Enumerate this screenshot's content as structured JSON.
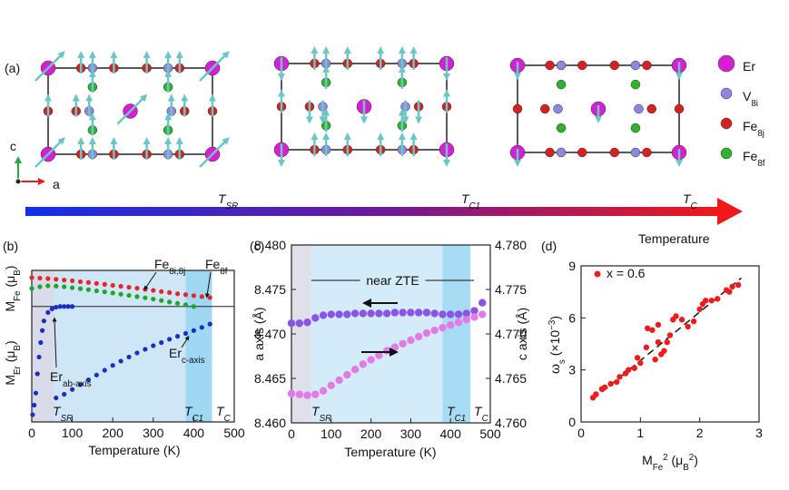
{
  "panel_a": {
    "label": "(a)",
    "legend": [
      {
        "name": [
          "Er"
        ],
        "color": "#d61fd2"
      },
      {
        "name": [
          "V",
          {
            "sub": "8i"
          }
        ],
        "color": "#8c88e2"
      },
      {
        "name": [
          "Fe",
          {
            "sub": "8j"
          }
        ],
        "color": "#d42222"
      },
      {
        "name": [
          "Fe",
          {
            "sub": "8f"
          }
        ],
        "color": "#2db42d"
      }
    ],
    "axis_labels": [
      "c",
      "a"
    ],
    "temperature_axis": {
      "label": "Temperature",
      "markers": [
        [
          "T",
          {
            "sub": "SR"
          }
        ],
        [
          "T",
          {
            "sub": "C1"
          }
        ],
        [
          "T",
          {
            "sub": "C"
          }
        ]
      ]
    }
  },
  "chart_data": [
    {
      "type": "scatter",
      "label": "(b)",
      "xlabel": "Temperature (K)",
      "ylabel_upper": [
        "M",
        {
          "sub": "Fe"
        },
        " (μ",
        {
          "sub": "B"
        },
        ")"
      ],
      "ylabel_lower": [
        "M",
        {
          "sub": "Er"
        },
        " (μ",
        {
          "sub": "B"
        },
        ")"
      ],
      "xlim": [
        0,
        500
      ],
      "xticks": [
        0,
        100,
        200,
        300,
        400,
        500
      ],
      "ylim": [
        -4.8,
        1.5
      ],
      "zero_line": true,
      "shaded_regions": [
        {
          "from": 0,
          "to": 55,
          "color": "#d9dbe8"
        },
        {
          "from": 55,
          "to": 380,
          "color": "#cfe6f7"
        },
        {
          "from": 380,
          "to": 445,
          "color": "#9ed8f2"
        }
      ],
      "annotations": [
        [
          "T",
          {
            "sub": "SR"
          }
        ],
        [
          "T",
          {
            "sub": "C1"
          }
        ],
        [
          "T",
          {
            "sub": "C"
          }
        ]
      ],
      "series": [
        {
          "name": [
            "Fe",
            {
              "sub": "8i,8j"
            }
          ],
          "color": "#e8262a",
          "x": [
            0,
            20,
            40,
            60,
            80,
            100,
            120,
            140,
            160,
            180,
            200,
            220,
            240,
            260,
            280,
            300,
            320,
            340,
            360,
            380,
            400,
            420,
            440
          ],
          "values": [
            1.2,
            1.18,
            1.16,
            1.13,
            1.1,
            1.07,
            1.03,
            1.0,
            0.96,
            0.92,
            0.88,
            0.84,
            0.8,
            0.76,
            0.71,
            0.67,
            0.62,
            0.58,
            0.53,
            0.49,
            0.45,
            0.41,
            0.37
          ]
        },
        {
          "name": [
            "Fe",
            {
              "sub": "8f"
            }
          ],
          "color": "#22a32a",
          "x": [
            0,
            20,
            40,
            60,
            80,
            100,
            120,
            140,
            160,
            180,
            200,
            220,
            240,
            260,
            280,
            300,
            320,
            340,
            360,
            380,
            400
          ],
          "values": [
            0.75,
            0.82,
            0.86,
            0.85,
            0.82,
            0.78,
            0.74,
            0.7,
            0.65,
            0.61,
            0.56,
            0.51,
            0.46,
            0.41,
            0.36,
            0.31,
            0.25,
            0.19,
            0.13,
            0.07,
            0.0
          ]
        },
        {
          "name": [
            "Er",
            {
              "sub": "ab-axis"
            }
          ],
          "color": "#1a2fc0",
          "x": [
            2,
            6,
            10,
            14,
            18,
            22,
            26,
            30,
            40,
            50,
            60,
            70,
            80,
            90,
            100
          ],
          "values": [
            -4.5,
            -4.1,
            -3.6,
            -2.8,
            -2.1,
            -1.5,
            -1.0,
            -0.6,
            -0.25,
            -0.1,
            -0.03,
            0,
            0,
            0,
            0
          ]
        },
        {
          "name": [
            "Er",
            {
              "sub": "c-axis"
            }
          ],
          "color": "#1a2fc0",
          "x": [
            60,
            80,
            100,
            120,
            140,
            160,
            180,
            200,
            220,
            240,
            260,
            280,
            300,
            320,
            340,
            360,
            380,
            400,
            420,
            440
          ],
          "values": [
            -3.8,
            -3.65,
            -3.45,
            -3.25,
            -3.05,
            -2.85,
            -2.65,
            -2.45,
            -2.27,
            -2.1,
            -1.93,
            -1.78,
            -1.63,
            -1.5,
            -1.36,
            -1.24,
            -1.12,
            -1.0,
            -0.87,
            -0.73
          ]
        }
      ]
    },
    {
      "type": "scatter",
      "label": "(c)",
      "xlabel": "Temperature (K)",
      "ylabel": "a axis (Å)",
      "y2label": "c axis (Å)",
      "xlim": [
        0,
        500
      ],
      "xticks": [
        0,
        100,
        200,
        300,
        400,
        500
      ],
      "ylim": [
        8.46,
        8.48
      ],
      "yticks": [
        {
          "value": 8.46,
          "label": "8.460"
        },
        {
          "value": 8.465,
          "label": "8.465"
        },
        {
          "value": 8.47,
          "label": "8.470"
        },
        {
          "value": 8.475,
          "label": "8.475"
        },
        {
          "value": 8.48,
          "label": "8.480"
        }
      ],
      "y2lim": [
        4.76,
        4.78
      ],
      "y2ticks": [
        {
          "value": 4.76,
          "label": "4.760"
        },
        {
          "value": 4.765,
          "label": "4.765"
        },
        {
          "value": 4.77,
          "label": "4.770"
        },
        {
          "value": 4.775,
          "label": "4.775"
        },
        {
          "value": 4.78,
          "label": "4.780"
        }
      ],
      "shaded_regions": [
        {
          "from": 0,
          "to": 50,
          "color": "#e0e0ea"
        },
        {
          "from": 50,
          "to": 380,
          "color": "#d4ebf9"
        },
        {
          "from": 380,
          "to": 450,
          "color": "#a8dcf4"
        }
      ],
      "span_label": "near ZTE",
      "annotations": [
        [
          "T",
          {
            "sub": "SR"
          }
        ],
        [
          "T",
          {
            "sub": "C1"
          }
        ],
        [
          "T",
          {
            "sub": "C"
          }
        ]
      ],
      "series": [
        {
          "color": "#8a55e6",
          "x": [
            0,
            20,
            40,
            60,
            80,
            100,
            120,
            140,
            160,
            180,
            200,
            220,
            240,
            260,
            280,
            300,
            320,
            340,
            360,
            380,
            400,
            420,
            440,
            460,
            480
          ],
          "values": [
            8.4712,
            8.4712,
            8.4713,
            8.4718,
            8.4721,
            8.4722,
            8.4722,
            8.4722,
            8.4723,
            8.4723,
            8.4723,
            8.4723,
            8.4723,
            8.4724,
            8.4724,
            8.4724,
            8.4724,
            8.4724,
            8.4723,
            8.4722,
            8.4722,
            8.4722,
            8.4723,
            8.4726,
            8.4735
          ]
        },
        {
          "color": "#e27be6",
          "axis": "y2",
          "x": [
            0,
            20,
            40,
            60,
            80,
            100,
            120,
            140,
            160,
            180,
            200,
            220,
            240,
            260,
            280,
            300,
            320,
            340,
            360,
            380,
            400,
            420,
            440,
            460,
            480
          ],
          "values": [
            4.7633,
            4.7632,
            4.7631,
            4.7632,
            4.7636,
            4.7642,
            4.7648,
            4.7654,
            4.766,
            4.7666,
            4.7671,
            4.7676,
            4.7681,
            4.7685,
            4.7689,
            4.7693,
            4.7697,
            4.7701,
            4.7704,
            4.7707,
            4.771,
            4.7713,
            4.7716,
            4.7719,
            4.7722
          ]
        }
      ]
    },
    {
      "type": "scatter",
      "label": "(d)",
      "xlabel": [
        "M",
        {
          "sub": "Fe"
        },
        {
          "sup": "2"
        },
        " (μ",
        {
          "sub": "B"
        },
        {
          "sup": "2"
        },
        ")"
      ],
      "ylabel": [
        "ω",
        {
          "sub": "s"
        },
        " (×10",
        {
          "sup": "−3"
        },
        ")"
      ],
      "xlim": [
        0,
        3
      ],
      "xticks": [
        0,
        1,
        2,
        3
      ],
      "ylim": [
        0,
        9
      ],
      "yticks": [
        0,
        3,
        6,
        9
      ],
      "legend": "upper left",
      "fit": {
        "x": [
          0.2,
          2.7
        ],
        "values": [
          1.3,
          8.3
        ],
        "style": "dashed",
        "color": "#111111"
      },
      "series": [
        {
          "name": "x = 0.6",
          "color": "#ee1c1c",
          "x": [
            0.2,
            0.25,
            0.35,
            0.4,
            0.5,
            0.6,
            0.65,
            0.75,
            0.8,
            0.9,
            0.95,
            1.0,
            1.1,
            1.12,
            1.2,
            1.25,
            1.3,
            1.3,
            1.35,
            1.4,
            1.45,
            1.5,
            1.55,
            1.6,
            1.7,
            1.8,
            1.9,
            2.0,
            2.05,
            2.1,
            2.2,
            2.3,
            2.45,
            2.5,
            2.55,
            2.65
          ],
          "values": [
            1.4,
            1.6,
            1.9,
            2.0,
            2.2,
            2.3,
            2.6,
            2.8,
            3.0,
            3.1,
            3.7,
            3.4,
            4.3,
            5.4,
            5.3,
            3.6,
            4.6,
            5.6,
            3.9,
            4.1,
            4.6,
            5.0,
            5.9,
            6.1,
            5.9,
            5.5,
            5.8,
            6.5,
            6.8,
            7.0,
            7.0,
            7.1,
            7.6,
            7.5,
            7.8,
            7.9
          ]
        }
      ]
    }
  ]
}
